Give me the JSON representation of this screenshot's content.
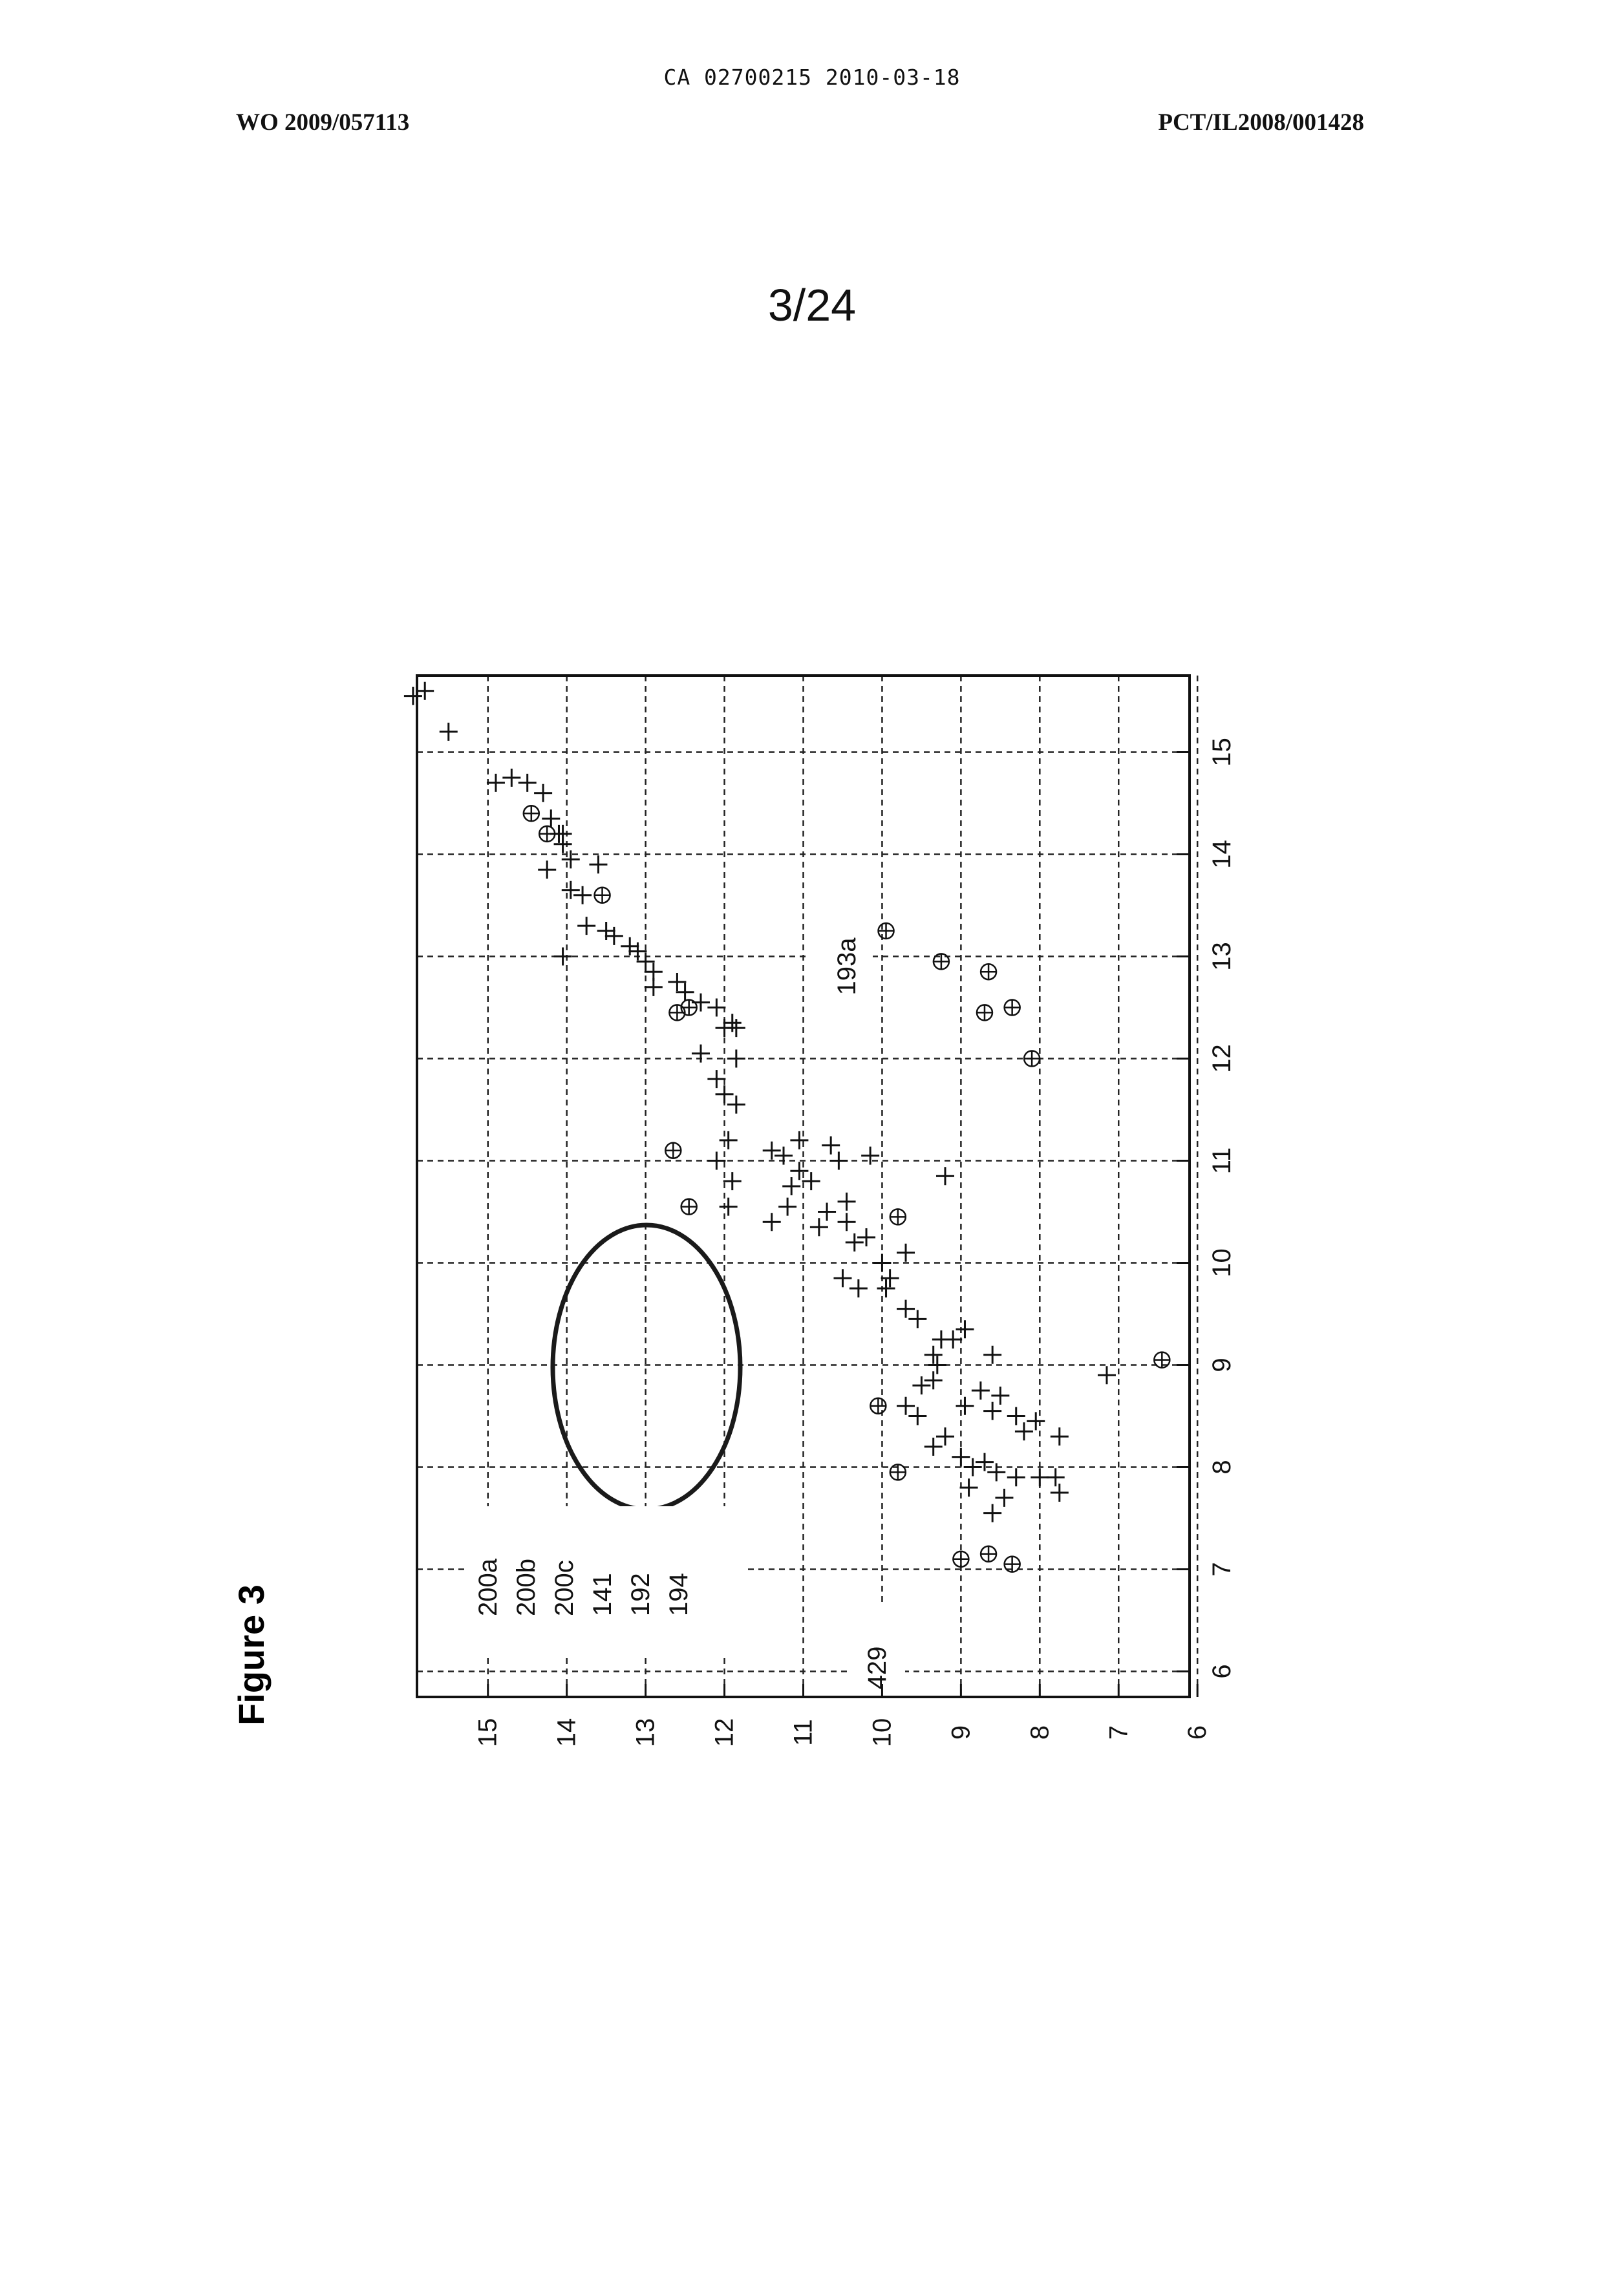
{
  "header": {
    "doc_id": "CA 02700215 2010-03-18",
    "publication_left": "WO 2009/057113",
    "publication_right": "PCT/IL2008/001428",
    "sheet_number": "3/24"
  },
  "figure": {
    "label": "Figure 3"
  },
  "chart_data": {
    "type": "scatter",
    "grid": true,
    "xlim": [
      5.75,
      15.75
    ],
    "ylim": [
      6.1,
      15.9
    ],
    "xticks": [
      "6",
      "7",
      "8",
      "9",
      "10",
      "11",
      "12",
      "13",
      "14",
      "15"
    ],
    "yticks": [
      "15",
      "14",
      "13",
      "12",
      "11",
      "10",
      "9",
      "8",
      "7",
      "6"
    ],
    "annotations": {
      "left_group": [
        "200a",
        "200b",
        "200c",
        "141",
        "192",
        "194"
      ],
      "lower": "429",
      "upper": "193a"
    },
    "series": [
      {
        "marker": "plus",
        "points": [
          [
            15.55,
            15.95
          ],
          [
            15.6,
            15.8
          ],
          [
            15.2,
            15.5
          ],
          [
            14.7,
            14.9
          ],
          [
            14.75,
            14.7
          ],
          [
            14.7,
            14.5
          ],
          [
            14.6,
            14.3
          ],
          [
            14.35,
            14.2
          ],
          [
            14.2,
            14.1
          ],
          [
            14.1,
            14.05
          ],
          [
            13.95,
            13.95
          ],
          [
            14.2,
            14.05
          ],
          [
            13.85,
            14.25
          ],
          [
            13.9,
            13.6
          ],
          [
            13.65,
            13.95
          ],
          [
            13.6,
            13.8
          ],
          [
            13.3,
            13.75
          ],
          [
            13.0,
            14.05
          ],
          [
            13.25,
            13.5
          ],
          [
            13.2,
            13.4
          ],
          [
            13.1,
            13.2
          ],
          [
            13.05,
            13.1
          ],
          [
            12.95,
            13.0
          ],
          [
            12.85,
            12.9
          ],
          [
            12.7,
            12.9
          ],
          [
            12.75,
            12.6
          ],
          [
            12.65,
            12.5
          ],
          [
            12.55,
            12.3
          ],
          [
            12.5,
            12.1
          ],
          [
            12.3,
            12.0
          ],
          [
            12.05,
            12.3
          ],
          [
            12.35,
            11.9
          ],
          [
            12.3,
            11.85
          ],
          [
            12.0,
            11.85
          ],
          [
            11.8,
            12.1
          ],
          [
            11.65,
            12.0
          ],
          [
            11.55,
            11.85
          ],
          [
            11.2,
            11.95
          ],
          [
            11.0,
            12.1
          ],
          [
            10.8,
            11.9
          ],
          [
            10.55,
            11.95
          ],
          [
            11.1,
            11.4
          ],
          [
            11.05,
            11.25
          ],
          [
            10.9,
            11.05
          ],
          [
            10.75,
            11.15
          ],
          [
            10.55,
            11.2
          ],
          [
            11.2,
            11.05
          ],
          [
            10.8,
            10.9
          ],
          [
            10.5,
            10.7
          ],
          [
            10.4,
            11.4
          ],
          [
            10.35,
            10.8
          ],
          [
            11.15,
            10.65
          ],
          [
            11.0,
            10.55
          ],
          [
            11.05,
            10.15
          ],
          [
            10.6,
            10.45
          ],
          [
            10.4,
            10.45
          ],
          [
            10.2,
            10.35
          ],
          [
            10.25,
            10.2
          ],
          [
            10.0,
            10.0
          ],
          [
            9.85,
            10.5
          ],
          [
            9.75,
            10.3
          ],
          [
            10.1,
            9.7
          ],
          [
            9.85,
            9.9
          ],
          [
            9.75,
            9.95
          ],
          [
            9.55,
            9.7
          ],
          [
            9.45,
            9.55
          ],
          [
            9.25,
            9.25
          ],
          [
            9.1,
            9.35
          ],
          [
            9.0,
            9.3
          ],
          [
            8.85,
            9.35
          ],
          [
            8.8,
            9.5
          ],
          [
            8.6,
            9.7
          ],
          [
            8.5,
            9.55
          ],
          [
            9.25,
            9.1
          ],
          [
            9.35,
            8.95
          ],
          [
            9.1,
            8.6
          ],
          [
            8.75,
            8.75
          ],
          [
            8.7,
            8.5
          ],
          [
            8.55,
            8.6
          ],
          [
            8.5,
            8.3
          ],
          [
            8.45,
            8.05
          ],
          [
            8.35,
            8.2
          ],
          [
            8.3,
            7.75
          ],
          [
            8.3,
            9.2
          ],
          [
            8.2,
            9.35
          ],
          [
            8.1,
            9.0
          ],
          [
            8.05,
            8.7
          ],
          [
            8.0,
            8.85
          ],
          [
            7.95,
            8.55
          ],
          [
            7.9,
            8.3
          ],
          [
            7.9,
            8.0
          ],
          [
            7.8,
            8.9
          ],
          [
            7.7,
            8.45
          ],
          [
            7.55,
            8.6
          ],
          [
            7.75,
            7.75
          ],
          [
            7.9,
            7.8
          ],
          [
            8.6,
            8.95
          ],
          [
            10.85,
            9.2
          ],
          [
            8.9,
            7.15
          ]
        ]
      },
      {
        "marker": "circle-plus",
        "points": [
          [
            14.4,
            14.45
          ],
          [
            14.2,
            14.25
          ],
          [
            13.6,
            13.55
          ],
          [
            12.5,
            12.45
          ],
          [
            12.45,
            12.6
          ],
          [
            11.1,
            12.65
          ],
          [
            10.55,
            12.45
          ],
          [
            13.25,
            9.95
          ],
          [
            12.95,
            9.25
          ],
          [
            12.85,
            8.65
          ],
          [
            12.5,
            8.35
          ],
          [
            12.45,
            8.7
          ],
          [
            12.0,
            8.1
          ],
          [
            10.45,
            9.8
          ],
          [
            8.6,
            10.05
          ],
          [
            7.95,
            9.8
          ],
          [
            7.15,
            8.65
          ],
          [
            7.1,
            9.0
          ],
          [
            7.05,
            8.35
          ],
          [
            9.05,
            6.45
          ]
        ]
      }
    ]
  }
}
